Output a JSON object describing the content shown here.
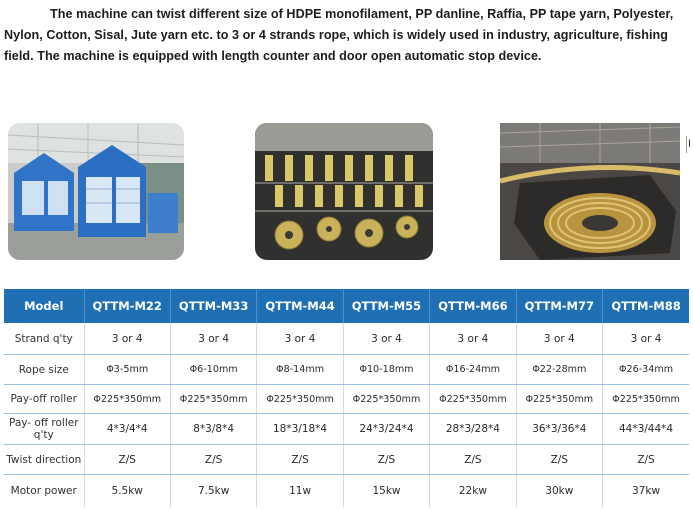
{
  "intro": {
    "line1": "The machine can twist different size of HDPE monofilament, PP danline, Raffia, PP tape yarn, Polyester,",
    "line2": "Nylon, Cotton, Sisal, Jute yarn etc. to 3 or 4 strands rope, which is widely used in industry, agriculture, fishing",
    "line3": "field. The machine is equipped with length counter and door open automatic stop device."
  },
  "edge_glyph": "I",
  "colors": {
    "header_bg": "#1f6fb5",
    "header_text": "#ffffff",
    "row_line": "#9cc0e0"
  },
  "table": {
    "header_label": "Model",
    "models": [
      "QTTM-M22",
      "QTTM-M33",
      "QTTM-M44",
      "QTTM-M55",
      "QTTM-M66",
      "QTTM-M77",
      "QTTM-M88"
    ],
    "rows": [
      {
        "label": "Strand q'ty",
        "values": [
          "3 or 4",
          "3 or 4",
          "3 or 4",
          "3 or 4",
          "3 or 4",
          "3 or 4",
          "3 or 4"
        ]
      },
      {
        "label": "Rope size",
        "values": [
          "Φ3-5mm",
          "Φ6-10mm",
          "Φ8-14mm",
          "Φ10-18mm",
          "Φ16-24mm",
          "Φ22-28mm",
          "Φ26-34mm"
        ]
      },
      {
        "label": "Pay-off roller",
        "values": [
          "Φ225*350mm",
          "Φ225*350mm",
          "Φ225*350mm",
          "Φ225*350mm",
          "Φ225*350mm",
          "Φ225*350mm",
          "Φ225*350mm"
        ]
      },
      {
        "label": "Pay- off roller q'ty",
        "values": [
          "4*3/4*4",
          "8*3/8*4",
          "18*3/18*4",
          "24*3/24*4",
          "28*3/28*4",
          "36*3/36*4",
          "44*3/44*4"
        ]
      },
      {
        "label": "Twist direction",
        "values": [
          "Z/S",
          "Z/S",
          "Z/S",
          "Z/S",
          "Z/S",
          "Z/S",
          "Z/S"
        ]
      },
      {
        "label": "Motor power",
        "values": [
          "5.5kw",
          "7.5kw",
          "11w",
          "15kw",
          "22kw",
          "30kw",
          "37kw"
        ]
      }
    ]
  }
}
